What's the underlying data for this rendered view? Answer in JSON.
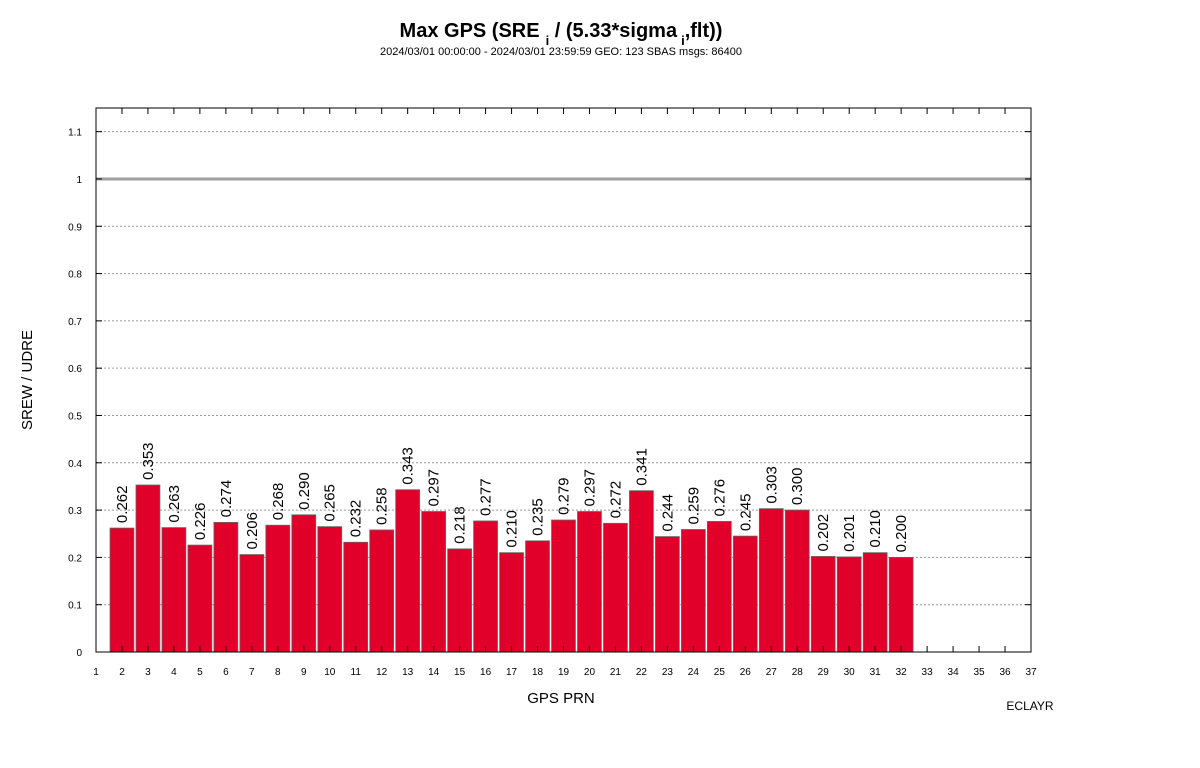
{
  "chart_data": {
    "type": "bar",
    "title": {
      "main": "Max GPS (SRE",
      "sub1": "i",
      "mid": " / (5.33*sigma",
      "sub2": "i",
      "end": ",flt))"
    },
    "subtitle": "2024/03/01 00:00:00 - 2024/03/01 23:59:59  GEO: 123 SBAS msgs: 86400",
    "xlabel": "GPS PRN",
    "ylabel": "SREW / UDRE",
    "footer": "ECLAYR",
    "xlim": [
      1,
      37
    ],
    "ylim": [
      0,
      1.15
    ],
    "x_ticks": [
      1,
      2,
      3,
      4,
      5,
      6,
      7,
      8,
      9,
      10,
      11,
      12,
      13,
      14,
      15,
      16,
      17,
      18,
      19,
      20,
      21,
      22,
      23,
      24,
      25,
      26,
      27,
      28,
      29,
      30,
      31,
      32,
      33,
      34,
      35,
      36,
      37
    ],
    "y_ticks": [
      {
        "value": 0,
        "label": "0"
      },
      {
        "value": 0.1,
        "label": "0.1"
      },
      {
        "value": 0.2,
        "label": "0.2"
      },
      {
        "value": 0.3,
        "label": "0.3"
      },
      {
        "value": 0.4,
        "label": "0.4"
      },
      {
        "value": 0.5,
        "label": "0.5"
      },
      {
        "value": 0.6,
        "label": "0.6"
      },
      {
        "value": 0.7,
        "label": "0.7"
      },
      {
        "value": 0.8,
        "label": "0.8"
      },
      {
        "value": 0.9,
        "label": "0.9"
      },
      {
        "value": 1.0,
        "label": "1"
      },
      {
        "value": 1.1,
        "label": "1.1"
      }
    ],
    "threshold": 1.0,
    "grid": true,
    "bar_color": "#e0002a",
    "threshold_color": "#a0a0a0",
    "x": [
      2,
      3,
      4,
      5,
      6,
      7,
      8,
      9,
      10,
      11,
      12,
      13,
      14,
      15,
      16,
      17,
      18,
      19,
      20,
      21,
      22,
      23,
      24,
      25,
      26,
      27,
      28,
      29,
      30,
      31,
      32
    ],
    "values": [
      0.262,
      0.353,
      0.263,
      0.226,
      0.274,
      0.206,
      0.268,
      0.29,
      0.265,
      0.232,
      0.258,
      0.343,
      0.297,
      0.218,
      0.277,
      0.21,
      0.235,
      0.279,
      0.297,
      0.272,
      0.341,
      0.244,
      0.259,
      0.276,
      0.245,
      0.303,
      0.3,
      0.202,
      0.201,
      0.21,
      0.2
    ],
    "value_labels": [
      "0.262",
      "0.353",
      "0.263",
      "0.226",
      "0.274",
      "0.206",
      "0.268",
      "0.290",
      "0.265",
      "0.232",
      "0.258",
      "0.343",
      "0.297",
      "0.218",
      "0.277",
      "0.210",
      "0.235",
      "0.279",
      "0.297",
      "0.272",
      "0.341",
      "0.244",
      "0.259",
      "0.276",
      "0.245",
      "0.303",
      "0.300",
      "0.202",
      "0.201",
      "0.210",
      "0.200"
    ]
  }
}
